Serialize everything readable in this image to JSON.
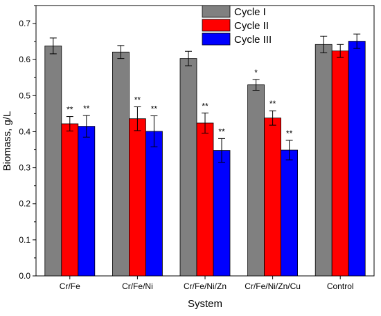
{
  "chart_data": {
    "type": "bar",
    "title": "",
    "xlabel": "System",
    "ylabel": "Biomass, g/L",
    "ylim": [
      0,
      0.75
    ],
    "yticks": [
      "0.0",
      "0.1",
      "0.2",
      "0.3",
      "0.4",
      "0.5",
      "0.6",
      "0.7"
    ],
    "categories": [
      "Cr/Fe",
      "Cr/Fe/Ni",
      "Cr/Fe/Ni/Zn",
      "Cr/Fe/Ni/Zn/Cu",
      "Control"
    ],
    "legend_position": "top-right",
    "grid": false,
    "series": [
      {
        "name": "Cycle I",
        "color": "#808080",
        "values": [
          0.638,
          0.621,
          0.603,
          0.53,
          0.642
        ],
        "errors": [
          0.022,
          0.018,
          0.02,
          0.015,
          0.023
        ],
        "significance": [
          "",
          "",
          "",
          "*",
          ""
        ]
      },
      {
        "name": "Cycle II",
        "color": "#ff0000",
        "values": [
          0.422,
          0.436,
          0.424,
          0.438,
          0.624
        ],
        "errors": [
          0.02,
          0.033,
          0.028,
          0.02,
          0.018
        ],
        "significance": [
          "**",
          "**",
          "**",
          "**",
          ""
        ]
      },
      {
        "name": "Cycle III",
        "color": "#0000ff",
        "values": [
          0.415,
          0.401,
          0.348,
          0.349,
          0.651
        ],
        "errors": [
          0.03,
          0.043,
          0.033,
          0.027,
          0.02
        ],
        "significance": [
          "**",
          "**",
          "**",
          "**",
          ""
        ]
      }
    ]
  }
}
